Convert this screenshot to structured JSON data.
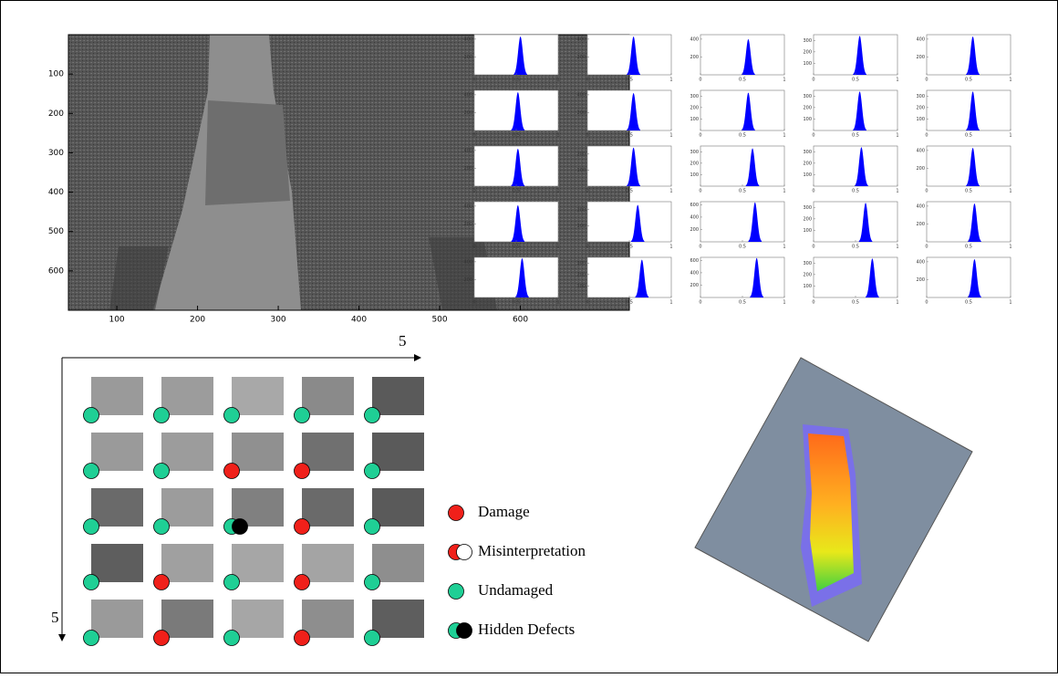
{
  "image_panel": {
    "xlim": [
      40,
      735
    ],
    "ylim": [
      0,
      700
    ],
    "xticks": [
      100,
      200,
      300,
      400,
      500,
      600
    ],
    "yticks": [
      100,
      200,
      300,
      400,
      500,
      600
    ]
  },
  "histograms": {
    "xlim": [
      0,
      1
    ],
    "xticks": [
      0,
      0.5,
      1
    ],
    "color": "#0000ff",
    "plots": [
      {
        "yticks": [
          200,
          400
        ],
        "ylim": [
          0,
          450
        ],
        "peak": 0.55,
        "height": 430
      },
      {
        "yticks": [
          200,
          400
        ],
        "ylim": [
          0,
          450
        ],
        "peak": 0.55,
        "height": 430
      },
      {
        "yticks": [
          200,
          400
        ],
        "ylim": [
          0,
          450
        ],
        "peak": 0.57,
        "height": 400
      },
      {
        "yticks": [
          100,
          200,
          300
        ],
        "ylim": [
          0,
          350
        ],
        "peak": 0.55,
        "height": 340
      },
      {
        "yticks": [
          200,
          400
        ],
        "ylim": [
          0,
          450
        ],
        "peak": 0.55,
        "height": 430
      },
      {
        "yticks": [
          200,
          400
        ],
        "ylim": [
          0,
          450
        ],
        "peak": 0.52,
        "height": 430
      },
      {
        "yticks": [
          200,
          400
        ],
        "ylim": [
          0,
          450
        ],
        "peak": 0.55,
        "height": 420
      },
      {
        "yticks": [
          100,
          200,
          300
        ],
        "ylim": [
          0,
          350
        ],
        "peak": 0.57,
        "height": 330
      },
      {
        "yticks": [
          100,
          200,
          300
        ],
        "ylim": [
          0,
          350
        ],
        "peak": 0.55,
        "height": 340
      },
      {
        "yticks": [
          100,
          200,
          300
        ],
        "ylim": [
          0,
          350
        ],
        "peak": 0.55,
        "height": 340
      },
      {
        "yticks": [
          200,
          400
        ],
        "ylim": [
          0,
          450
        ],
        "peak": 0.52,
        "height": 420
      },
      {
        "yticks": [
          100,
          200
        ],
        "ylim": [
          0,
          250
        ],
        "peak": 0.55,
        "height": 240
      },
      {
        "yticks": [
          100,
          200,
          300
        ],
        "ylim": [
          0,
          350
        ],
        "peak": 0.62,
        "height": 330
      },
      {
        "yticks": [
          100,
          200,
          300
        ],
        "ylim": [
          0,
          350
        ],
        "peak": 0.57,
        "height": 340
      },
      {
        "yticks": [
          200,
          400
        ],
        "ylim": [
          0,
          450
        ],
        "peak": 0.55,
        "height": 430
      },
      {
        "yticks": [
          200,
          400
        ],
        "ylim": [
          0,
          450
        ],
        "peak": 0.52,
        "height": 410
      },
      {
        "yticks": [
          100,
          200
        ],
        "ylim": [
          0,
          250
        ],
        "peak": 0.6,
        "height": 230
      },
      {
        "yticks": [
          200,
          400,
          600
        ],
        "ylim": [
          0,
          650
        ],
        "peak": 0.65,
        "height": 640
      },
      {
        "yticks": [
          100,
          200,
          300
        ],
        "ylim": [
          0,
          350
        ],
        "peak": 0.62,
        "height": 340
      },
      {
        "yticks": [
          200,
          400
        ],
        "ylim": [
          0,
          450
        ],
        "peak": 0.57,
        "height": 430
      },
      {
        "yticks": [
          200,
          400
        ],
        "ylim": [
          0,
          450
        ],
        "peak": 0.57,
        "height": 440
      },
      {
        "yticks": [
          100,
          200,
          300
        ],
        "ylim": [
          0,
          350
        ],
        "peak": 0.65,
        "height": 330
      },
      {
        "yticks": [
          200,
          400,
          600
        ],
        "ylim": [
          0,
          650
        ],
        "peak": 0.67,
        "height": 640
      },
      {
        "yticks": [
          100,
          200,
          300
        ],
        "ylim": [
          0,
          350
        ],
        "peak": 0.7,
        "height": 340
      },
      {
        "yticks": [
          200,
          400
        ],
        "ylim": [
          0,
          450
        ],
        "peak": 0.57,
        "height": 430
      }
    ]
  },
  "tile_grid": {
    "x_axis_label": "5",
    "y_axis_label": "5",
    "status": [
      [
        2,
        2,
        2,
        2,
        2
      ],
      [
        2,
        2,
        0,
        0,
        2
      ],
      [
        2,
        2,
        3,
        0,
        2
      ],
      [
        2,
        0,
        2,
        0,
        2
      ],
      [
        2,
        0,
        2,
        0,
        2
      ]
    ]
  },
  "legend": [
    {
      "label": "Damage",
      "colors": [
        "#f0201a"
      ]
    },
    {
      "label": "Misinterpretation",
      "colors": [
        "#f0201a",
        "#ffffff"
      ]
    },
    {
      "label": "Undamaged",
      "colors": [
        "#1fcf95"
      ]
    },
    {
      "label": "Hidden Defects",
      "colors": [
        "#1fcf95",
        "#000000"
      ]
    }
  ]
}
